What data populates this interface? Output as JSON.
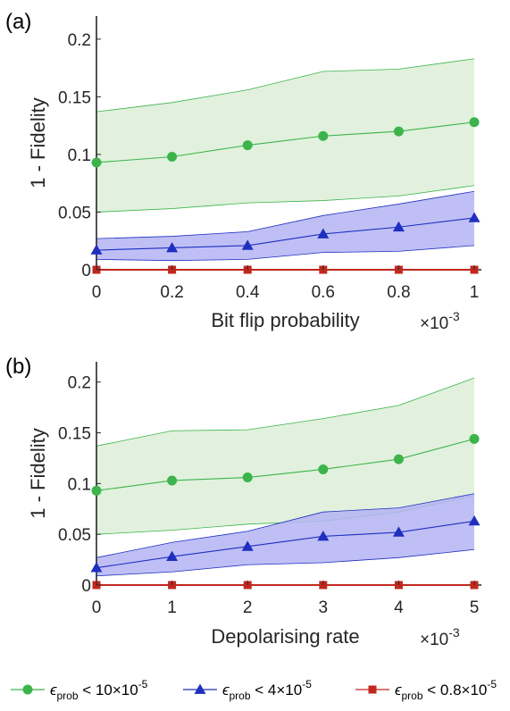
{
  "chart_data": [
    {
      "type": "line",
      "panel_label": "(a)",
      "xlabel": "Bit flip probability",
      "x_multiplier": "×10",
      "x_multiplier_exp": "-3",
      "ylabel": "1 - Fidelity",
      "xlim": [
        0,
        1
      ],
      "ylim": [
        0,
        0.22
      ],
      "x": [
        0,
        0.2,
        0.4,
        0.6,
        0.8,
        1
      ],
      "x_tick_labels": [
        "0",
        "0.2",
        "0.4",
        "0.6",
        "0.8",
        "1"
      ],
      "y_ticks": [
        0,
        0.05,
        0.1,
        0.15,
        0.2
      ],
      "y_tick_labels": [
        "0",
        "0.05",
        "0.1",
        "0.15",
        "0.2"
      ],
      "grid": false,
      "series": [
        {
          "values": [
            0.093,
            0.098,
            0.108,
            0.116,
            0.12,
            0.128
          ],
          "band_upper": [
            0.137,
            0.145,
            0.156,
            0.172,
            0.174,
            0.183
          ],
          "band_lower": [
            0.05,
            0.053,
            0.058,
            0.06,
            0.064,
            0.073
          ],
          "color": "#3cb44b",
          "band_color": "#dcefd7",
          "marker": "circle"
        },
        {
          "values": [
            0.017,
            0.019,
            0.021,
            0.031,
            0.037,
            0.045
          ],
          "band_upper": [
            0.027,
            0.029,
            0.033,
            0.047,
            0.057,
            0.068
          ],
          "band_lower": [
            0.009,
            0.008,
            0.009,
            0.015,
            0.016,
            0.021
          ],
          "color": "#1f2fbf",
          "band_color": "#b4b4f4",
          "marker": "triangle"
        },
        {
          "values": [
            0,
            0,
            0,
            0,
            0,
            0
          ],
          "color": "#c0281e",
          "marker": "square"
        }
      ]
    },
    {
      "type": "line",
      "panel_label": "(b)",
      "xlabel": "Depolarising rate",
      "x_multiplier": "×10",
      "x_multiplier_exp": "-3",
      "ylabel": "1 - Fidelity",
      "xlim": [
        0,
        5
      ],
      "ylim": [
        0,
        0.22
      ],
      "x": [
        0,
        1,
        2,
        3,
        4,
        5
      ],
      "x_tick_labels": [
        "0",
        "1",
        "2",
        "3",
        "4",
        "5"
      ],
      "y_ticks": [
        0,
        0.05,
        0.1,
        0.15,
        0.2
      ],
      "y_tick_labels": [
        "0",
        "0.05",
        "0.1",
        "0.15",
        "0.2"
      ],
      "grid": false,
      "series": [
        {
          "values": [
            0.093,
            0.103,
            0.106,
            0.114,
            0.124,
            0.144
          ],
          "band_upper": [
            0.137,
            0.152,
            0.153,
            0.164,
            0.177,
            0.204
          ],
          "band_lower": [
            0.05,
            0.054,
            0.06,
            0.063,
            0.072,
            0.088
          ],
          "color": "#3cb44b",
          "band_color": "#dcefd7",
          "marker": "circle"
        },
        {
          "values": [
            0.017,
            0.028,
            0.038,
            0.048,
            0.052,
            0.063
          ],
          "band_upper": [
            0.027,
            0.042,
            0.053,
            0.072,
            0.076,
            0.09
          ],
          "band_lower": [
            0.009,
            0.013,
            0.02,
            0.022,
            0.027,
            0.035
          ],
          "color": "#1f2fbf",
          "band_color": "#b4b4f4",
          "marker": "triangle"
        },
        {
          "values": [
            0,
            0,
            0,
            0,
            0,
            0
          ],
          "color": "#c0281e",
          "marker": "square"
        }
      ]
    }
  ],
  "legend": {
    "placement": "bottom",
    "entries": [
      {
        "symbol": "ϵ",
        "sub": "prob",
        "text": " < 10×10",
        "exp": "-5",
        "color": "#3cb44b",
        "marker": "circle"
      },
      {
        "symbol": "ϵ",
        "sub": "prob",
        "text": " < 4×10",
        "exp": "-5",
        "color": "#1f2fbf",
        "marker": "triangle"
      },
      {
        "symbol": "ϵ",
        "sub": "prob",
        "text": " < 0.8×10",
        "exp": "-5",
        "color": "#c0281e",
        "marker": "square"
      }
    ]
  }
}
